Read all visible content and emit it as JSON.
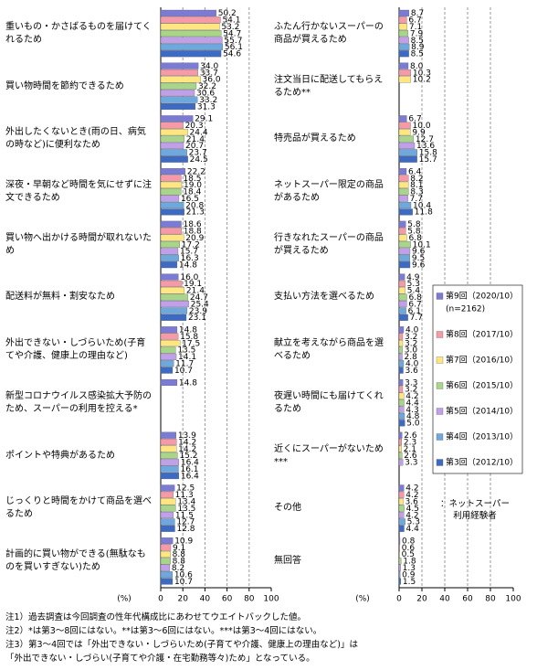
{
  "chart_data": [
    {
      "type": "bar",
      "orientation": "horizontal",
      "xlabel": "(%)",
      "xlim": [
        0,
        100
      ],
      "xticks": [
        0,
        20,
        40,
        60,
        80,
        100
      ],
      "grid": true,
      "categories": [
        "重いもの・かさばるものを届けてくれるため",
        "買い物時間を節約できるため",
        "外出したくないとき(雨の日、病気の時など)に便利なため",
        "深夜・早朝など時間を気にせずに注文できるため",
        "買い物へ出かける時間が取れないため",
        "配送料が無料・割安なため",
        "外出できない・しづらいため(子育てや介護、健康上の理由など)",
        "新型コロナウイルス感染拡大予防のため、スーパーの利用を控える*",
        "ポイントや特典があるため",
        "じっくりと時間をかけて商品を選べるため",
        "計画的に買い物ができる(無駄なものを買いすぎない)ため"
      ],
      "series": [
        {
          "color": "#7b7bd6",
          "values": [
            50.2,
            34.0,
            29.1,
            22.2,
            18.6,
            16.0,
            14.8,
            14.8,
            13.9,
            12.5,
            10.9
          ],
          "value_labels": [
            "50.2",
            "34.0",
            "29.1",
            "22.2",
            "18.6",
            "16.0",
            "14.8",
            "14.8",
            "13.9",
            "12.5",
            "10.9"
          ]
        },
        {
          "color": "#f59aa6",
          "values": [
            54.1,
            33.7,
            20.3,
            18.5,
            18.8,
            19.1,
            15.8,
            null,
            14.2,
            11.3,
            9.1
          ],
          "value_labels": [
            "54.1",
            "33.7",
            "20.3",
            "18.5",
            "18.8",
            "19.1",
            "15.8",
            null,
            "14.2",
            "11.3",
            "9.1"
          ]
        },
        {
          "color": "#ffe680",
          "values": [
            53.2,
            36.0,
            24.4,
            19.0,
            20.9,
            21.4,
            17.5,
            null,
            14.2,
            13.4,
            8.8
          ],
          "value_labels": [
            "53.2",
            "36.0",
            "24.4",
            "19.0",
            "20.9",
            "21.4",
            "17.5",
            null,
            "14.2",
            "13.4",
            "8.8"
          ]
        },
        {
          "color": "#a8d58a",
          "values": [
            54.7,
            32.2,
            21.4,
            18.4,
            17.2,
            24.7,
            13.5,
            null,
            15.2,
            13.5,
            8.8
          ],
          "value_labels": [
            "54.7",
            "32.2",
            "21.4",
            "18.4",
            "17.2",
            "24.7",
            "13.5",
            null,
            "15.2",
            "13.5",
            "8.8"
          ]
        },
        {
          "color": "#c0a0e8",
          "values": [
            55.7,
            30.6,
            20.7,
            16.5,
            15.7,
            25.4,
            14.1,
            null,
            16.4,
            11.5,
            8.2
          ],
          "value_labels": [
            "55.7",
            "30.6",
            "20.7",
            "16.5",
            "15.7",
            "25.4",
            "14.1",
            null,
            "16.4",
            "11.5",
            "8.2"
          ]
        },
        {
          "color": "#6fa8dc",
          "values": [
            56.1,
            33.2,
            23.7,
            20.8,
            16.3,
            23.9,
            11.7,
            null,
            16.1,
            12.7,
            10.6
          ],
          "value_labels": [
            "56.1",
            "33.2",
            "23.7",
            "20.8",
            "16.3",
            "23.9",
            "11.7",
            null,
            "16.1",
            "12.7",
            "10.6"
          ]
        },
        {
          "color": "#3d6bc4",
          "values": [
            54.6,
            31.3,
            24.5,
            21.3,
            14.8,
            23.1,
            10.7,
            null,
            16.4,
            12.8,
            10.7
          ],
          "value_labels": [
            "54.6",
            "31.3",
            "24.5",
            "21.3",
            "14.8",
            "23.1",
            "10.7",
            null,
            "16.4",
            "12.8",
            "10.7"
          ]
        }
      ]
    },
    {
      "type": "bar",
      "orientation": "horizontal",
      "xlabel": "(%)",
      "xlim": [
        0,
        100
      ],
      "xticks": [
        0,
        20,
        40,
        60,
        80,
        100
      ],
      "grid": true,
      "legend_title": "：ネットスーパー利用経験者",
      "categories": [
        "ふたん行かないスーパーの商品が買えるため",
        "注文当日に配送してもらえるため**",
        "特売品が買えるため",
        "ネットスーパー限定の商品があるため",
        "行きなれたスーパーの商品が買えるため",
        "支払い方法を選べるため",
        "献立を考えながら商品を選べるため",
        "夜遅い時間にも届けてくれるため",
        "近くにスーパーがないため***",
        "その他",
        "無回答"
      ],
      "series": [
        {
          "name": "第9回（2020/10）",
          "n": "(n=2162)",
          "color": "#7b7bd6",
          "values": [
            8.7,
            8.0,
            6.7,
            6.4,
            5.8,
            4.9,
            4.0,
            3.3,
            2.6,
            4.2,
            0.8
          ],
          "value_labels": [
            "8.7",
            "8.0",
            "6.7",
            "6.4",
            "5.8",
            "4.9",
            "4.0",
            "3.3",
            "2.6",
            "4.2",
            "0.8"
          ]
        },
        {
          "name": "第8回（2017/10）",
          "color": "#f59aa6",
          "values": [
            6.7,
            10.3,
            10.0,
            8.2,
            5.8,
            5.3,
            3.2,
            3.2,
            2.3,
            4.2,
            0.6
          ],
          "value_labels": [
            "6.7",
            "10.3",
            "10.0",
            "8.2",
            "5.8",
            "5.3",
            "3.2",
            "3.2",
            "2.3",
            "4.2",
            "0.6"
          ]
        },
        {
          "name": "第7回（2016/10）",
          "color": "#ffe680",
          "values": [
            7.1,
            10.2,
            9.9,
            8.1,
            6.8,
            5.4,
            3.2,
            4.2,
            2.1,
            3.6,
            0.5
          ],
          "value_labels": [
            "7.1",
            "10.2",
            "9.9",
            "8.1",
            "6.8",
            "5.4",
            "3.2",
            "4.2",
            "2.1",
            "3.6",
            "0.5"
          ]
        },
        {
          "name": "第6回（2015/10）",
          "color": "#a8d58a",
          "values": [
            7.9,
            null,
            12.7,
            8.3,
            10.1,
            6.8,
            3.0,
            4.4,
            2.6,
            4.5,
            1.8
          ],
          "value_labels": [
            "7.9",
            null,
            "12.7",
            "8.3",
            "10.1",
            "6.8",
            "3.0",
            "4.4",
            "2.6",
            "4.5",
            "1.8"
          ]
        },
        {
          "name": "第5回（2014/10）",
          "color": "#c0a0e8",
          "values": [
            8.5,
            null,
            13.6,
            7.7,
            9.6,
            6.7,
            2.8,
            4.3,
            3.3,
            4.2,
            1.3
          ],
          "value_labels": [
            "8.5",
            null,
            "13.6",
            "7.7",
            "9.6",
            "6.7",
            "2.8",
            "4.3",
            "3.3",
            "4.2",
            "1.3"
          ]
        },
        {
          "name": "第4回（2013/10）",
          "color": "#6fa8dc",
          "values": [
            8.9,
            null,
            15.8,
            10.4,
            9.5,
            6.1,
            4.0,
            4.8,
            null,
            5.3,
            0.9
          ],
          "value_labels": [
            "8.9",
            null,
            "15.8",
            "10.4",
            "9.5",
            "6.1",
            "4.0",
            "4.8",
            null,
            "5.3",
            "0.9"
          ]
        },
        {
          "name": "第3回（2012/10）",
          "color": "#3d6bc4",
          "values": [
            8.5,
            null,
            15.7,
            11.8,
            9.6,
            7.7,
            3.6,
            5.0,
            null,
            4.4,
            1.5
          ],
          "value_labels": [
            "8.5",
            null,
            "15.7",
            "11.8",
            "9.6",
            "7.7",
            "3.6",
            "5.0",
            null,
            "4.4",
            "1.5"
          ]
        }
      ]
    }
  ],
  "notes": [
    "注1）過去調査は今回調査の性年代構成比にあわせてウエイトバックした値。",
    "注2）*は第3～8回にはない。**は第3～6回にはない。***は第3～4回にはない。",
    "注3）第3～4回では「外出できない・しづらいため(子育てや介護、健康上の理由など)」は",
    "「外出できない・しづらい(子育てや介護・在宅勤務等々)ため」となっている。"
  ]
}
